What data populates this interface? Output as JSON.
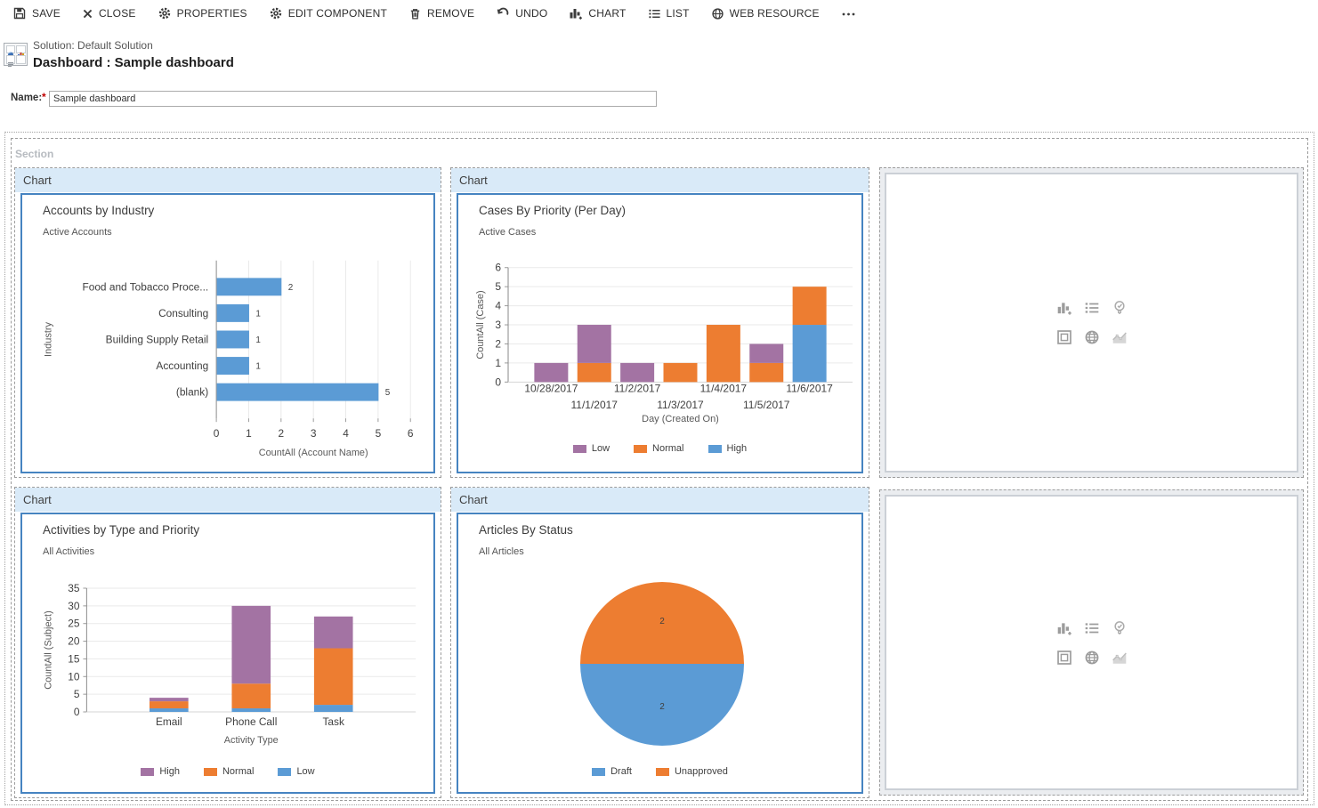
{
  "toolbar": {
    "items": [
      {
        "icon": "save-icon",
        "label": "SAVE"
      },
      {
        "icon": "close-icon",
        "label": "CLOSE"
      },
      {
        "icon": "gear-icon",
        "label": "PROPERTIES"
      },
      {
        "icon": "gear-icon",
        "label": "EDIT COMPONENT"
      },
      {
        "icon": "trash-icon",
        "label": "REMOVE"
      },
      {
        "icon": "undo-icon",
        "label": "UNDO"
      },
      {
        "icon": "add-chart-icon",
        "label": "CHART"
      },
      {
        "icon": "list-icon",
        "label": "LIST"
      },
      {
        "icon": "globe-icon",
        "label": "WEB RESOURCE"
      },
      {
        "icon": "ellipsis-icon",
        "label": "•••"
      }
    ]
  },
  "header": {
    "solution": "Solution: Default Solution",
    "title": "Dashboard : Sample dashboard"
  },
  "name_field": {
    "label": "Name:",
    "required_marker": "*",
    "value": "Sample dashboard"
  },
  "section": {
    "label": "Section",
    "tile_header_label": "Chart"
  },
  "empty_tile": {
    "icons": [
      "add-chart-icon",
      "list-icon",
      "lightbulb-check-icon",
      "iframe-icon",
      "web-resource-icon",
      "trend-chart-icon"
    ]
  },
  "colors": {
    "blue": "#5B9BD5",
    "orange": "#ED7D31",
    "purple": "#A373A3",
    "tile_header_bg": "#D9EAF8",
    "chart_border": "#4684C1"
  },
  "chart_data": [
    {
      "type": "bar",
      "orientation": "horizontal",
      "title": "Accounts by Industry",
      "subtitle": "Active Accounts",
      "categories": [
        "Food and Tobacco Proce...",
        "Consulting",
        "Building Supply Retail",
        "Accounting",
        "(blank)"
      ],
      "values": [
        2,
        1,
        1,
        1,
        5
      ],
      "bar_color": "#5B9BD5",
      "value_labels": true,
      "xlabel": "CountAll (Account Name)",
      "ylabel": "Industry",
      "xlim": [
        0,
        6
      ],
      "xticks": [
        0,
        1,
        2,
        3,
        4,
        5,
        6
      ],
      "grid": true
    },
    {
      "type": "bar",
      "orientation": "vertical",
      "stacked": true,
      "title": "Cases By Priority (Per Day)",
      "subtitle": "Active Cases",
      "categories": [
        "10/28/2017",
        "11/1/2017",
        "11/2/2017",
        "11/3/2017",
        "11/4/2017",
        "11/5/2017",
        "11/6/2017"
      ],
      "series": [
        {
          "name": "High",
          "color": "#5B9BD5",
          "values": [
            0,
            0,
            0,
            0,
            0,
            0,
            3
          ]
        },
        {
          "name": "Normal",
          "color": "#ED7D31",
          "values": [
            0,
            1,
            0,
            1,
            3,
            1,
            2
          ]
        },
        {
          "name": "Low",
          "color": "#A373A3",
          "values": [
            1,
            2,
            1,
            0,
            0,
            1,
            0
          ]
        }
      ],
      "legend": [
        {
          "label": "Low",
          "color": "#A373A3"
        },
        {
          "label": "Normal",
          "color": "#ED7D31"
        },
        {
          "label": "High",
          "color": "#5B9BD5"
        }
      ],
      "legend_position": "bottom",
      "xlabel": "Day (Created On)",
      "ylabel": "CountAll (Case)",
      "ylim": [
        0,
        6
      ],
      "yticks": [
        0,
        1,
        2,
        3,
        4,
        5,
        6
      ],
      "grid": true
    },
    {
      "type": "bar",
      "orientation": "vertical",
      "stacked": true,
      "title": "Activities by Type and Priority",
      "subtitle": "All Activities",
      "categories": [
        "Email",
        "Phone Call",
        "Task"
      ],
      "series": [
        {
          "name": "Low",
          "color": "#5B9BD5",
          "values": [
            1,
            1,
            2
          ]
        },
        {
          "name": "Normal",
          "color": "#ED7D31",
          "values": [
            2,
            7,
            16
          ]
        },
        {
          "name": "High",
          "color": "#A373A3",
          "values": [
            1,
            22,
            9
          ]
        }
      ],
      "legend": [
        {
          "label": "High",
          "color": "#A373A3"
        },
        {
          "label": "Normal",
          "color": "#ED7D31"
        },
        {
          "label": "Low",
          "color": "#5B9BD5"
        }
      ],
      "legend_position": "bottom",
      "xlabel": "Activity Type",
      "ylabel": "CountAll (Subject)",
      "ylim": [
        0,
        35
      ],
      "yticks": [
        0,
        5,
        10,
        15,
        20,
        25,
        30,
        35
      ],
      "grid": true
    },
    {
      "type": "pie",
      "title": "Articles By Status",
      "subtitle": "All Articles",
      "slices": [
        {
          "label": "Draft",
          "value": 2,
          "color": "#5B9BD5"
        },
        {
          "label": "Unapproved",
          "value": 2,
          "color": "#ED7D31"
        }
      ],
      "legend": [
        {
          "label": "Draft",
          "color": "#5B9BD5"
        },
        {
          "label": "Unapproved",
          "color": "#ED7D31"
        }
      ],
      "legend_position": "bottom",
      "value_labels": true
    }
  ]
}
